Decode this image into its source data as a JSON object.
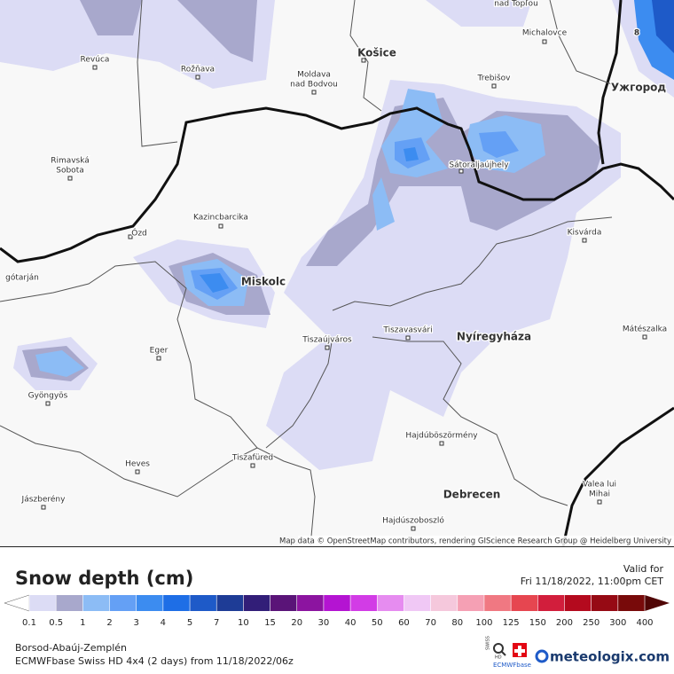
{
  "map": {
    "labels": [
      "nad Topľou",
      "Michalovce",
      "Revúca",
      "Rožňava",
      "Moldava",
      "nad Bodvou",
      "Košice",
      "Trebišov",
      "Ужгород",
      "Rimavská",
      "Sobota",
      "Kazincbarcika",
      "Ózd",
      "Sátoraljaújhely",
      "Kisvárda",
      "Miskolc",
      "gótarján",
      "Tiszaújváros",
      "Tiszavasvári",
      "Nyíregyháza",
      "Mátészalka",
      "Eger",
      "Gyöngyös",
      "Hajdúböszörmény",
      "Heves",
      "Tiszafüred",
      "Jászberény",
      "Debrecen",
      "Hajdúszoboszló",
      "Valea lui",
      "Mihai",
      "8"
    ],
    "attribution": "Map data © OpenStreetMap contributors, rendering GIScience Research Group @ Heidelberg University"
  },
  "legend": {
    "title": "Snow depth (cm)",
    "valid_label": "Valid for",
    "valid_time": "Fri 11/18/2022, 11:00pm CET",
    "ticks": [
      0.1,
      0.5,
      1,
      2,
      3,
      4,
      5,
      7,
      10,
      15,
      20,
      30,
      40,
      50,
      60,
      70,
      80,
      100,
      125,
      150,
      200,
      250,
      300,
      400
    ],
    "colors": [
      "#dcdcf5",
      "#a8a8cc",
      "#8cbcf5",
      "#64a0f5",
      "#3c8cf0",
      "#1e6ee6",
      "#1e5ac8",
      "#1e3c96",
      "#321e78",
      "#5a1478",
      "#8c14a0",
      "#b414d2",
      "#d23ce6",
      "#e68cf0",
      "#f0c8f5",
      "#f5c8dc",
      "#f5a0b4",
      "#f07882",
      "#e64650",
      "#d21e3c",
      "#b40a1e",
      "#960a14",
      "#780a0a",
      "#500505"
    ]
  },
  "footer": {
    "region": "Borsod-Abaúj-Zemplén",
    "model": "ECMWFbase Swiss HD 4x4 (2 days) from  11/18/2022/06z",
    "brand": "meteologix.com",
    "badge_top": "SWISS",
    "badge_mid": "HD",
    "badge_bottom": "ECMWFbase"
  }
}
